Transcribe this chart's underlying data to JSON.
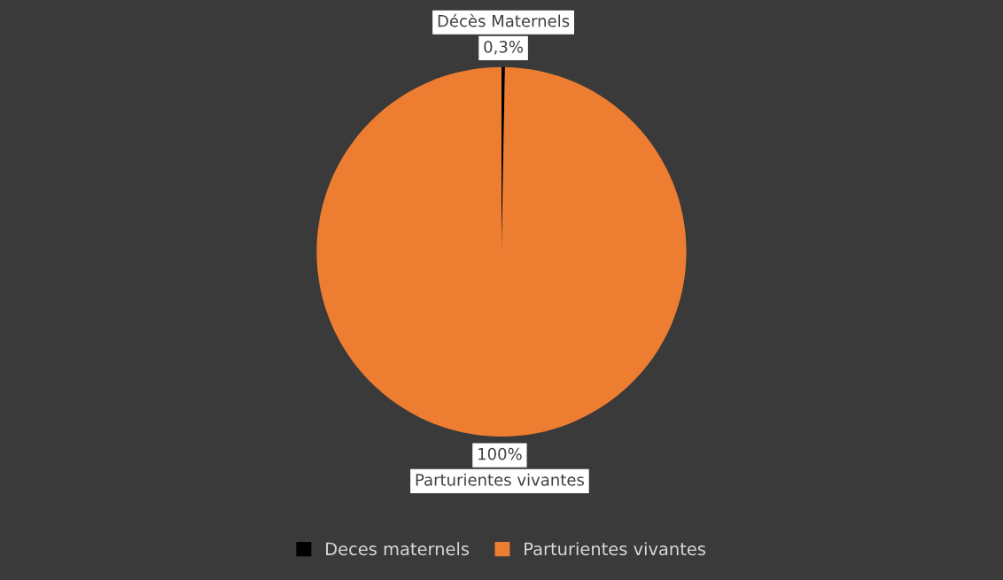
{
  "chart_data": {
    "type": "pie",
    "categories": [
      "Deces maternels",
      "Parturientes vivantes"
    ],
    "values": [
      0.3,
      100
    ],
    "colors": [
      "#000000",
      "#ed7d31"
    ],
    "annotations": [
      "Décès Maternels",
      "Parturientes vivantes"
    ],
    "value_labels": [
      "0,3%",
      "100%"
    ],
    "legend": "bottom"
  }
}
